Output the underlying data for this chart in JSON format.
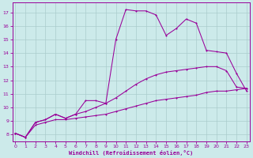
{
  "xlabel": "Windchill (Refroidissement éolien,°C)",
  "bg_color": "#cceaea",
  "grid_color": "#aacccc",
  "line_color": "#990099",
  "xlim": [
    -0.3,
    23.3
  ],
  "ylim": [
    7.5,
    17.7
  ],
  "xticks": [
    0,
    1,
    2,
    3,
    4,
    5,
    6,
    7,
    8,
    9,
    10,
    11,
    12,
    13,
    14,
    15,
    16,
    17,
    18,
    19,
    20,
    21,
    22,
    23
  ],
  "yticks": [
    8,
    9,
    10,
    11,
    12,
    13,
    14,
    15,
    16,
    17
  ],
  "s_top_x": [
    0,
    1,
    2,
    3,
    4,
    5,
    6,
    7,
    8,
    9,
    10,
    11,
    12,
    13,
    14,
    15,
    16,
    17,
    18,
    19,
    20,
    21,
    22,
    23
  ],
  "s_top_y": [
    8.1,
    7.8,
    8.9,
    9.1,
    9.5,
    9.2,
    9.5,
    10.5,
    10.5,
    10.3,
    15.0,
    17.2,
    17.1,
    17.1,
    16.8,
    15.3,
    15.8,
    16.5,
    16.2,
    14.2,
    14.1,
    14.0,
    12.5,
    11.2
  ],
  "s_mid_x": [
    0,
    1,
    2,
    3,
    4,
    5,
    6,
    7,
    8,
    9,
    10,
    11,
    12,
    13,
    14,
    15,
    16,
    17,
    18,
    19,
    20,
    21,
    22,
    23
  ],
  "s_mid_y": [
    8.1,
    7.8,
    8.9,
    9.1,
    9.5,
    9.2,
    9.5,
    9.7,
    10.0,
    10.3,
    10.7,
    11.2,
    11.7,
    12.1,
    12.4,
    12.6,
    12.7,
    12.8,
    12.9,
    13.0,
    13.0,
    12.7,
    11.5,
    11.4
  ],
  "s_bot_x": [
    0,
    1,
    2,
    3,
    4,
    5,
    6,
    7,
    8,
    9,
    10,
    11,
    12,
    13,
    14,
    15,
    16,
    17,
    18,
    19,
    20,
    21,
    22,
    23
  ],
  "s_bot_y": [
    8.1,
    7.8,
    8.7,
    8.9,
    9.1,
    9.1,
    9.2,
    9.3,
    9.4,
    9.5,
    9.7,
    9.9,
    10.1,
    10.3,
    10.5,
    10.6,
    10.7,
    10.8,
    10.9,
    11.1,
    11.2,
    11.2,
    11.3,
    11.4
  ]
}
